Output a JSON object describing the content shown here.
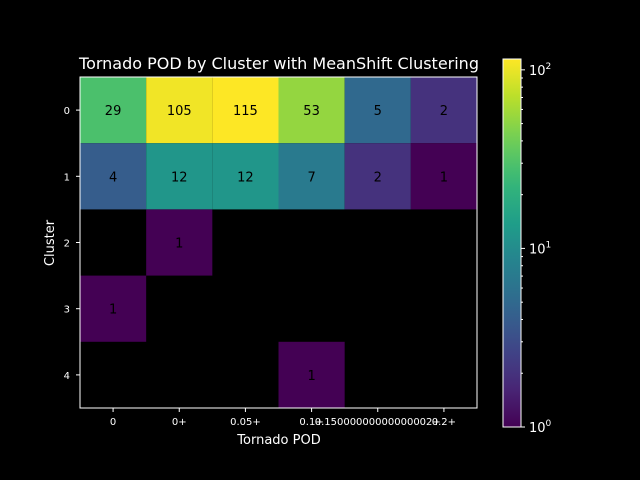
{
  "chart_data": {
    "type": "heatmap",
    "title": "Tornado POD by Cluster with MeanShift Clustering",
    "xlabel": "Tornado POD",
    "ylabel": "Cluster",
    "x_categories": [
      "0",
      "0+",
      "0.05+",
      "0.1+",
      "0.15000000000000002+",
      "0.2+"
    ],
    "y_categories": [
      "0",
      "1",
      "2",
      "3",
      "4"
    ],
    "values": [
      [
        29,
        105,
        115,
        53,
        5,
        2
      ],
      [
        4,
        12,
        12,
        7,
        2,
        1
      ],
      [
        null,
        1,
        null,
        null,
        null,
        null
      ],
      [
        1,
        null,
        null,
        null,
        null,
        null
      ],
      [
        null,
        null,
        null,
        1,
        null,
        null
      ]
    ],
    "color_scale": "log",
    "colormap": "viridis",
    "colorbar": {
      "min": 1,
      "max": 115,
      "ticks": [
        "10^0",
        "10^1",
        "10^2"
      ]
    },
    "background": "#000000"
  }
}
